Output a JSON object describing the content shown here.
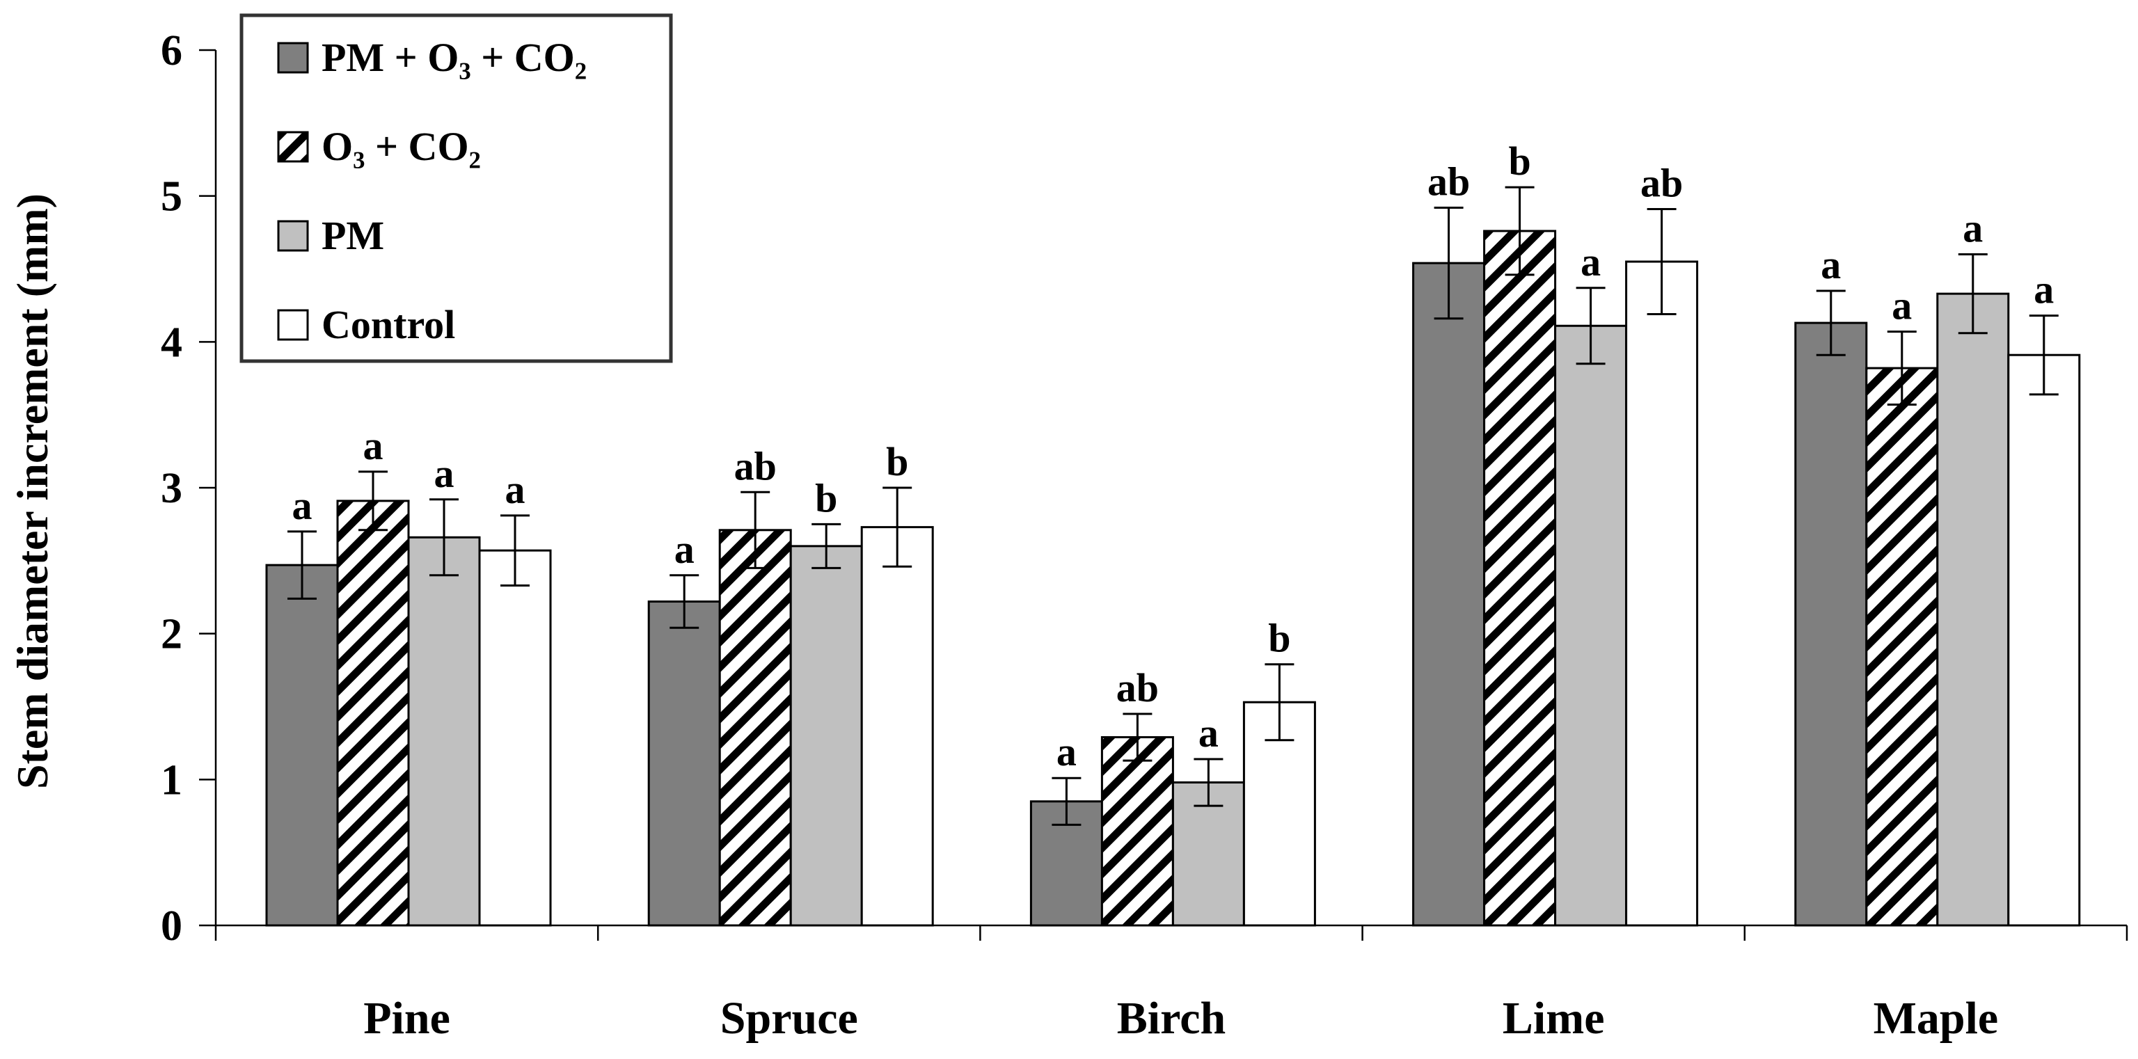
{
  "chart_data": {
    "type": "bar",
    "title": "",
    "xlabel": "",
    "ylabel": "Stem diameter increment (mm)",
    "ylim": [
      0,
      6
    ],
    "yticks": [
      "0",
      "1",
      "2",
      "3",
      "4",
      "5",
      "6"
    ],
    "categories": [
      "Pine",
      "Spruce",
      "Birch",
      "Lime",
      "Maple"
    ],
    "legend_position": "top-left",
    "series": [
      {
        "name": "PM + O₃ + CO₂",
        "fill": "#7f7f7f",
        "pattern": "solid",
        "values": [
          2.47,
          2.22,
          0.85,
          4.54,
          4.13
        ],
        "errors": [
          0.23,
          0.18,
          0.16,
          0.38,
          0.22
        ],
        "labels": [
          "a",
          "a",
          "a",
          "ab",
          "a"
        ]
      },
      {
        "name": "O₃ + CO₂",
        "fill": "#ffffff",
        "pattern": "hatched",
        "values": [
          2.91,
          2.71,
          1.29,
          4.76,
          3.82
        ],
        "errors": [
          0.2,
          0.26,
          0.16,
          0.3,
          0.25
        ],
        "labels": [
          "a",
          "ab",
          "ab",
          "b",
          "a"
        ]
      },
      {
        "name": "PM",
        "fill": "#c0c0c0",
        "pattern": "solid",
        "values": [
          2.66,
          2.6,
          0.98,
          4.11,
          4.33
        ],
        "errors": [
          0.26,
          0.15,
          0.16,
          0.26,
          0.27
        ],
        "labels": [
          "a",
          "b",
          "a",
          "a",
          "a"
        ]
      },
      {
        "name": "Control",
        "fill": "#ffffff",
        "pattern": "solid",
        "values": [
          2.57,
          2.73,
          1.53,
          4.55,
          3.91
        ],
        "errors": [
          0.24,
          0.27,
          0.26,
          0.36,
          0.27
        ],
        "labels": [
          "a",
          "b",
          "b",
          "ab",
          "a"
        ]
      }
    ]
  }
}
